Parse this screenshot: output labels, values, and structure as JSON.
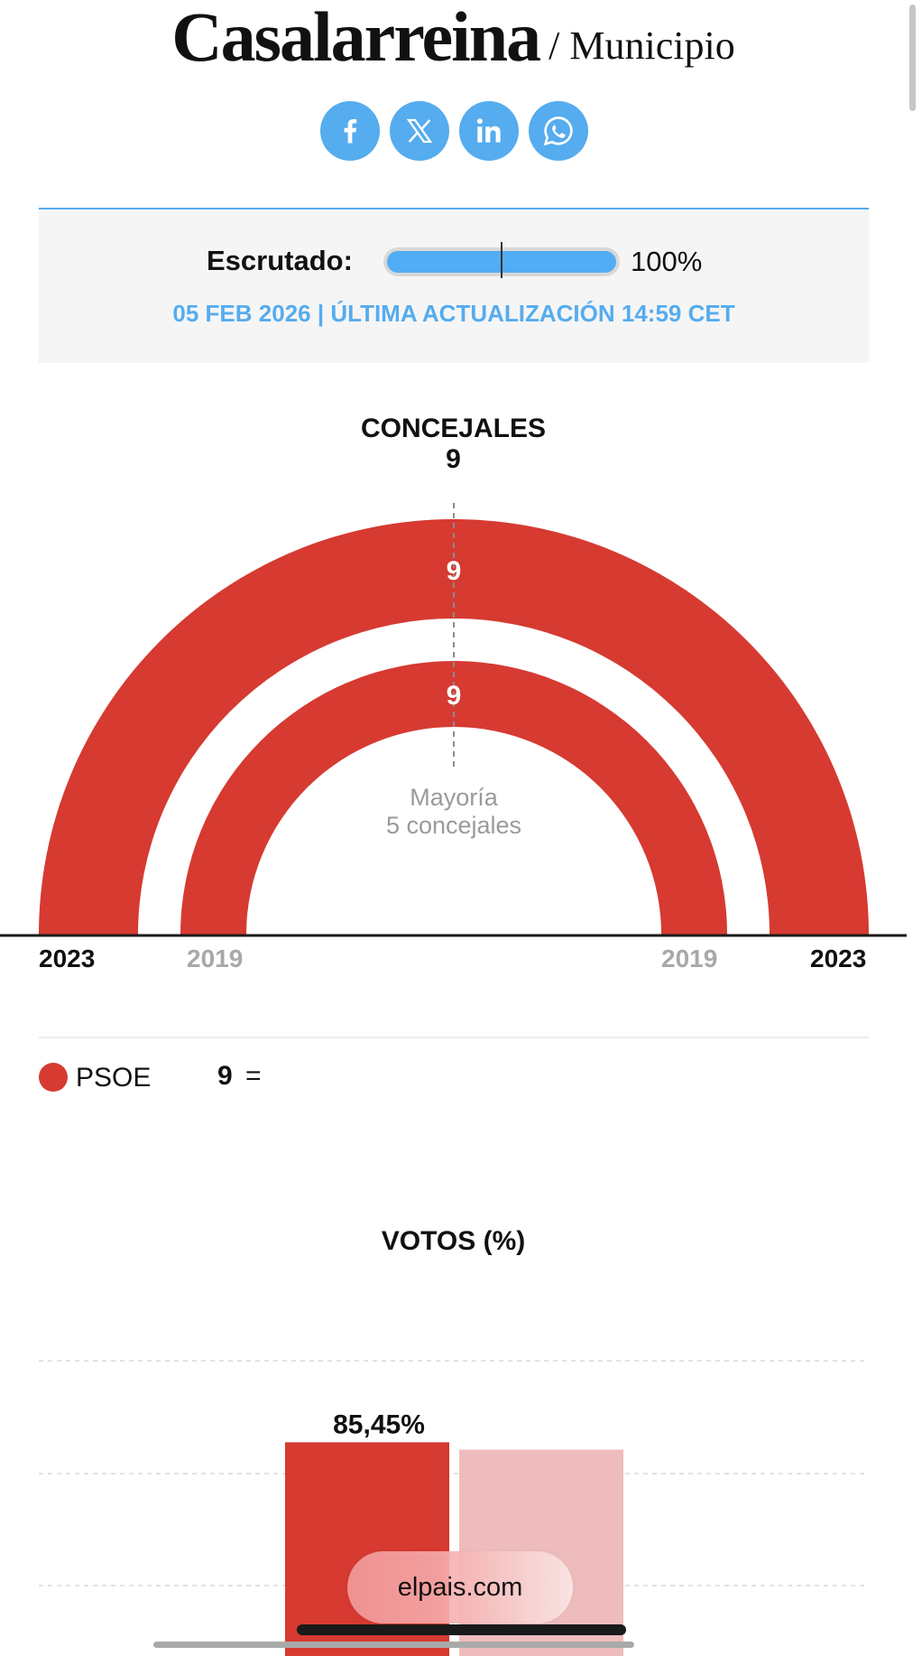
{
  "header": {
    "title": "Casalarreina",
    "subtitle": "/ Municipio"
  },
  "share": [
    {
      "icon": "facebook-icon"
    },
    {
      "icon": "x-icon"
    },
    {
      "icon": "linkedin-icon"
    },
    {
      "icon": "whatsapp-icon"
    }
  ],
  "scrutiny": {
    "label": "Escrutado:",
    "percent_text": "100%",
    "progress": 1.0,
    "updated": "05 FEB 2026 | ÚLTIMA ACTUALIZACIÓN 14:59 CET"
  },
  "seats": {
    "title": "CONCEJALES",
    "total": "9",
    "majority_label": "Mayoría",
    "majority_value": "5 concejales",
    "year_current": "2023",
    "year_previous": "2019",
    "ring_current_value": "9",
    "ring_previous_value": "9"
  },
  "legend": [
    {
      "party": "PSOE",
      "seats": "9",
      "change": "=",
      "color": "#d63a31"
    }
  ],
  "votes": {
    "title": "VOTOS (%)",
    "label_current": "85,45%"
  },
  "chart_data": [
    {
      "type": "pie",
      "title": "CONCEJALES",
      "total_seats": 9,
      "majority": 5,
      "series": [
        {
          "name": "2023",
          "slices": [
            {
              "party": "PSOE",
              "value": 9,
              "color": "#d63a31"
            }
          ]
        },
        {
          "name": "2019",
          "slices": [
            {
              "party": "PSOE",
              "value": 9,
              "color": "#d63a31"
            }
          ]
        }
      ]
    },
    {
      "type": "bar",
      "title": "VOTOS (%)",
      "categories": [
        "PSOE"
      ],
      "series": [
        {
          "name": "2023",
          "values": [
            85.45
          ],
          "color": "#d63a31"
        },
        {
          "name": "2019",
          "values": [
            82.5
          ],
          "color": "#efbcbd"
        }
      ],
      "grid": true
    }
  ],
  "footer": {
    "domain": "elpais.com"
  }
}
